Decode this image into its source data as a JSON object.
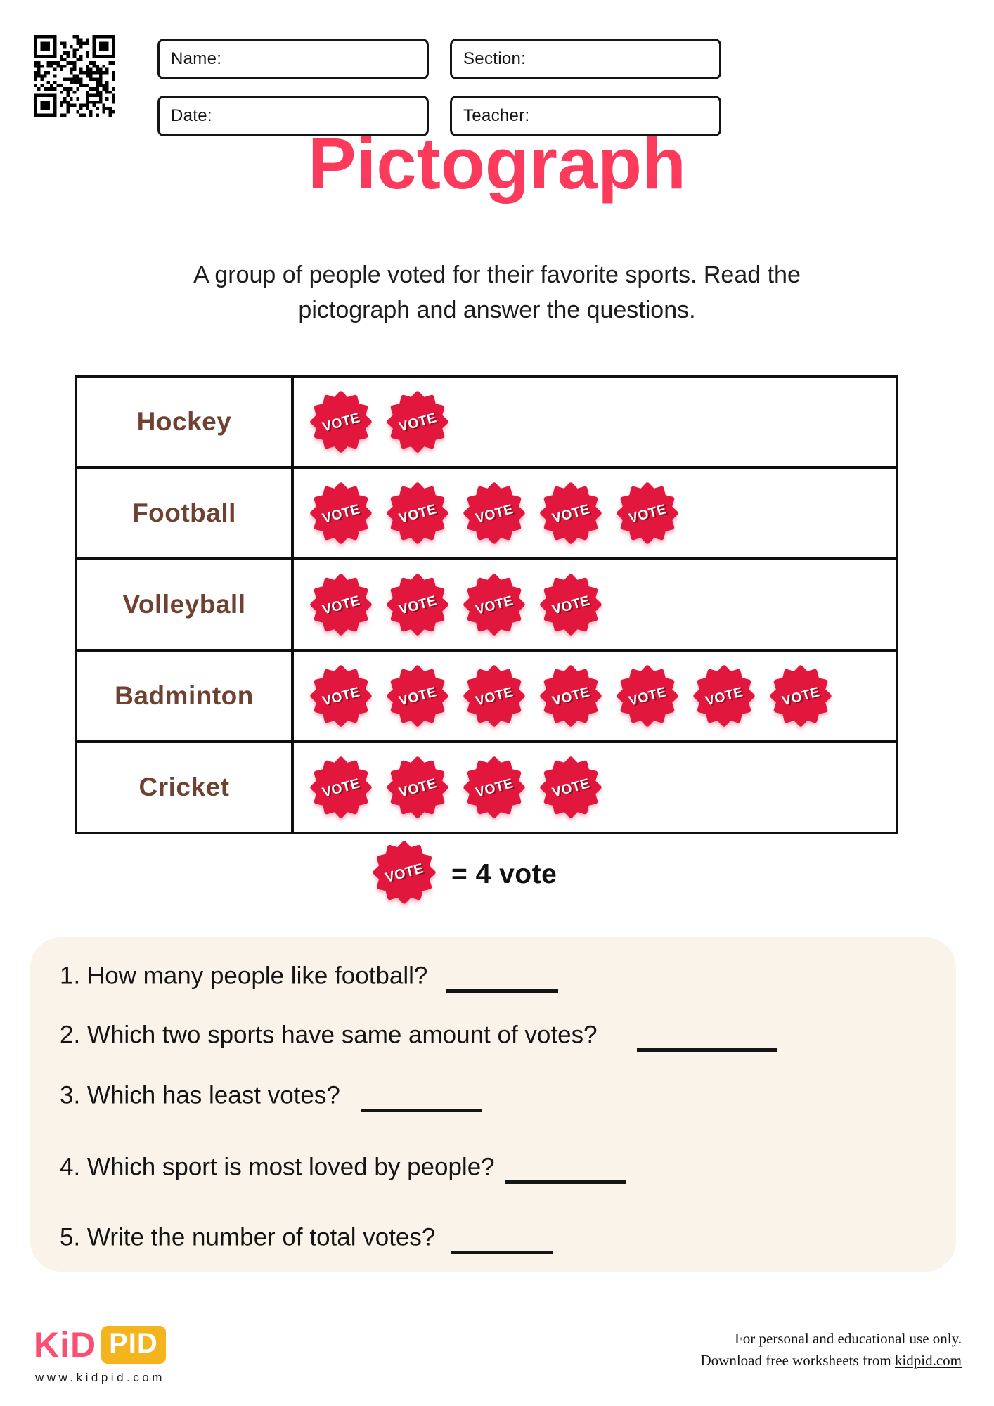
{
  "header": {
    "fields": [
      {
        "label": "Name:",
        "value": ""
      },
      {
        "label": "Section:",
        "value": ""
      },
      {
        "label": "Date:",
        "value": ""
      },
      {
        "label": "Teacher:",
        "value": ""
      }
    ]
  },
  "title": "Pictograph",
  "instructions": [
    "A group of people voted for their favorite sports. Read the",
    "pictograph and answer the questions."
  ],
  "chart_data": {
    "type": "pictograph",
    "title": "Pictograph",
    "categories": [
      "Hockey",
      "Football",
      "Volleyball",
      "Badminton",
      "Cricket"
    ],
    "series": [
      {
        "name": "vote badges shown",
        "values": [
          2,
          5,
          4,
          7,
          4
        ]
      },
      {
        "name": "total votes (badges x 4)",
        "values": [
          8,
          20,
          16,
          28,
          16
        ]
      }
    ],
    "symbol_label": "VOTE",
    "symbol_value": 4,
    "legend": "= 4 vote",
    "grid": "table borders on",
    "legend_position": "below table"
  },
  "legend": {
    "symbol_label": "VOTE",
    "text": "= 4 vote"
  },
  "questions": [
    {
      "text": "1. How many people like football?"
    },
    {
      "text": "2. Which two sports have same amount of votes?"
    },
    {
      "text": "3. Which has least votes?"
    },
    {
      "text": "4. Which sport is most loved by people?"
    },
    {
      "text": "5. Write the number of total votes?"
    }
  ],
  "footer": {
    "logo_part1": "KiD",
    "logo_part2": "PID",
    "website": "www.kidpid.com",
    "note_line1": "For personal and educational use only.",
    "note_line2_prefix": "Download free worksheets from ",
    "note_link": "kidpid.com"
  },
  "colors": {
    "title_pink": "#FB3A5C",
    "badge_red": "#E2173D",
    "badge_text_shadow": "#8C1024",
    "sport_brown": "#6E4130",
    "panel_cream": "#FAF3E9",
    "logo_yellow": "#F4B41D",
    "logo_pink": "#FA4E73",
    "ink": "#141414"
  }
}
